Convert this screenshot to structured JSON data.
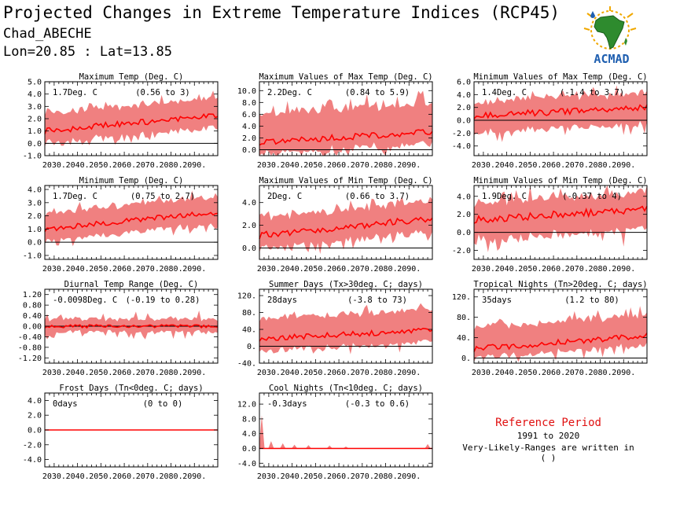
{
  "header": {
    "title": "Projected Changes in Extreme Temperature Indices (RCP45)",
    "station": "Chad_ABECHE",
    "coords": "Lon=20.85 : Lat=13.85"
  },
  "logo": {
    "text": "ACMAD"
  },
  "reference": {
    "title": "Reference Period",
    "years": "1991 to 2020",
    "note": "Very-Likely-Ranges are written in ( )"
  },
  "colors": {
    "band": "#f08080",
    "line": "#ff0000",
    "zero": "#000000",
    "logo_green": "#2e8b2e",
    "logo_blue": "#1f5fb0",
    "logo_gold": "#f0a800"
  },
  "chart_data": [
    {
      "type": "area",
      "title": "Maximum Temp (Deg. C)",
      "value_label": "1.7Deg. C",
      "range_label": "(0.56 to 3)",
      "x_ticks": [
        "2030.",
        "2040.",
        "2050.",
        "2060.",
        "2070.",
        "2080.",
        "2090."
      ],
      "xlim": [
        2026,
        2100
      ],
      "ylim": [
        -1.0,
        5.0
      ],
      "y_ticks": [
        "-1.0",
        "0.0",
        "1.0",
        "2.0",
        "3.0",
        "4.0",
        "5.0"
      ],
      "median_start": 1.0,
      "median_end": 2.3,
      "lower_offset": -0.9,
      "upper_offset": 1.3,
      "noise": 0.25,
      "spike": 0.8
    },
    {
      "type": "area",
      "title": "Maximum Values of Max Temp (Deg. C)",
      "value_label": "2.2Deg. C",
      "range_label": "(0.84 to 5.9)",
      "x_ticks": [
        "2030.",
        "2040.",
        "2050.",
        "2060.",
        "2070.",
        "2080.",
        "2090."
      ],
      "xlim": [
        2026,
        2100
      ],
      "ylim": [
        -1.0,
        11.5
      ],
      "y_ticks": [
        "0.0",
        "2.0",
        "4.0",
        "6.0",
        "8.0",
        "10.0"
      ],
      "median_start": 1.3,
      "median_end": 3.0,
      "lower_offset": -1.6,
      "upper_offset": 4.5,
      "noise": 0.5,
      "spike": 2.5
    },
    {
      "type": "area",
      "title": "Minimum Values of Max Temp (Deg. C)",
      "value_label": "1.4Deg. C",
      "range_label": "(-1.4 to 3.7)",
      "x_ticks": [
        "2030.",
        "2040.",
        "2050.",
        "2060.",
        "2070.",
        "2080.",
        "2090."
      ],
      "xlim": [
        2026,
        2100
      ],
      "ylim": [
        -5.5,
        6.0
      ],
      "y_ticks": [
        "-4.0",
        "-2.0",
        "0.0",
        "2.0",
        "4.0",
        "6.0"
      ],
      "median_start": 0.7,
      "median_end": 2.0,
      "lower_offset": -2.4,
      "upper_offset": 1.9,
      "noise": 0.5,
      "spike": 1.8
    },
    {
      "type": "area",
      "title": "Minimum Temp (Deg. C)",
      "value_label": "1.7Deg. C",
      "range_label": "(0.75 to 2.7)",
      "x_ticks": [
        "2030.",
        "2040.",
        "2050.",
        "2060.",
        "2070.",
        "2080.",
        "2090."
      ],
      "xlim": [
        2026,
        2100
      ],
      "ylim": [
        -1.3,
        4.3
      ],
      "y_ticks": [
        "-1.0",
        "0.0",
        "1.0",
        "2.0",
        "3.0",
        "4.0"
      ],
      "median_start": 1.0,
      "median_end": 2.3,
      "lower_offset": -0.8,
      "upper_offset": 1.1,
      "noise": 0.2,
      "spike": 0.6
    },
    {
      "type": "area",
      "title": "Maximum Values of Min Temp (Deg. C)",
      "value_label": "2Deg. C",
      "range_label": "(0.66 to 3.7)",
      "x_ticks": [
        "2030.",
        "2040.",
        "2050.",
        "2060.",
        "2070.",
        "2080.",
        "2090."
      ],
      "xlim": [
        2026,
        2100
      ],
      "ylim": [
        -1.0,
        5.5
      ],
      "y_ticks": [
        "0.0",
        "2.0",
        "4.0"
      ],
      "median_start": 1.1,
      "median_end": 2.6,
      "lower_offset": -1.0,
      "upper_offset": 1.4,
      "noise": 0.3,
      "spike": 1.0
    },
    {
      "type": "area",
      "title": "Minimum Values of Min Temp (Deg. C)",
      "value_label": "1.9Deg. C",
      "range_label": "(-0.37 to 4)",
      "x_ticks": [
        "2030.",
        "2040.",
        "2050.",
        "2060.",
        "2070.",
        "2080.",
        "2090."
      ],
      "xlim": [
        2026,
        2100
      ],
      "ylim": [
        -3.0,
        5.2
      ],
      "y_ticks": [
        "-2.0",
        "0.0",
        "2.0",
        "4.0"
      ],
      "median_start": 1.4,
      "median_end": 2.6,
      "lower_offset": -2.0,
      "upper_offset": 1.6,
      "noise": 0.4,
      "spike": 1.8
    },
    {
      "type": "area",
      "title": "Diurnal Temp Range (Deg. C)",
      "value_label": "-0.0098Deg. C",
      "range_label": "(-0.19 to 0.28)",
      "x_ticks": [
        "2030.",
        "2040.",
        "2050.",
        "2060.",
        "2070.",
        "2080.",
        "2090."
      ],
      "xlim": [
        2026,
        2100
      ],
      "ylim": [
        -1.4,
        1.4
      ],
      "y_ticks": [
        "-1.20",
        "-0.80",
        "-0.40",
        "0.00",
        "0.40",
        "0.80",
        "1.20"
      ],
      "median_start": 0.0,
      "median_end": 0.0,
      "lower_offset": -0.18,
      "upper_offset": 0.22,
      "noise": 0.06,
      "spike": 0.35
    },
    {
      "type": "area",
      "title": "Summer Days (Tx>30deg. C; days)",
      "value_label": "28days",
      "range_label": "(-3.8 to 73)",
      "x_ticks": [
        "2030.",
        "2040.",
        "2050.",
        "2060.",
        "2070.",
        "2080.",
        "2090."
      ],
      "xlim": [
        2026,
        2100
      ],
      "ylim": [
        -40,
        135
      ],
      "y_ticks": [
        "-40.",
        "0.",
        "40.",
        "80.",
        "120."
      ],
      "median_start": 18,
      "median_end": 38,
      "lower_offset": -25,
      "upper_offset": 45,
      "noise": 6,
      "spike": 22
    },
    {
      "type": "area",
      "title": "Tropical Nights (Tn>20deg. C; days)",
      "value_label": "35days",
      "range_label": "(1.2 to 80)",
      "x_ticks": [
        "2030.",
        "2040.",
        "2050.",
        "2060.",
        "2070.",
        "2080.",
        "2090."
      ],
      "xlim": [
        2026,
        2100
      ],
      "ylim": [
        -10,
        135
      ],
      "y_ticks": [
        "0.",
        "40.",
        "80.",
        "120."
      ],
      "median_start": 18,
      "median_end": 45,
      "lower_offset": -15,
      "upper_offset": 38,
      "noise": 6,
      "spike": 22
    },
    {
      "type": "area",
      "title": "Frost Days (Tn<0deg. C; days)",
      "value_label": "0days",
      "range_label": "(0 to 0)",
      "x_ticks": [
        "2030.",
        "2040.",
        "2050.",
        "2060.",
        "2070.",
        "2080.",
        "2090."
      ],
      "xlim": [
        2026,
        2100
      ],
      "ylim": [
        -5.0,
        5.0
      ],
      "y_ticks": [
        "-4.0",
        "-2.0",
        "0.0",
        "2.0",
        "4.0"
      ],
      "median_start": 0,
      "median_end": 0,
      "lower_offset": 0,
      "upper_offset": 0,
      "noise": 0,
      "spike": 0
    },
    {
      "type": "area",
      "title": "Cool Nights (Tn<10deg. C; days)",
      "value_label": "-0.3days",
      "range_label": "(-0.3 to 0.6)",
      "x_ticks": [
        "2030.",
        "2040.",
        "2050.",
        "2060.",
        "2070.",
        "2080.",
        "2090."
      ],
      "xlim": [
        2026,
        2100
      ],
      "ylim": [
        -5.0,
        15.0
      ],
      "y_ticks": [
        "-4.0",
        "0.0",
        "4.0",
        "8.0",
        "12.0"
      ],
      "median_start": 0,
      "median_end": 0,
      "lower_offset": 0,
      "upper_offset": 0,
      "noise": 0,
      "spike": 0,
      "sparse_spikes": true
    }
  ]
}
